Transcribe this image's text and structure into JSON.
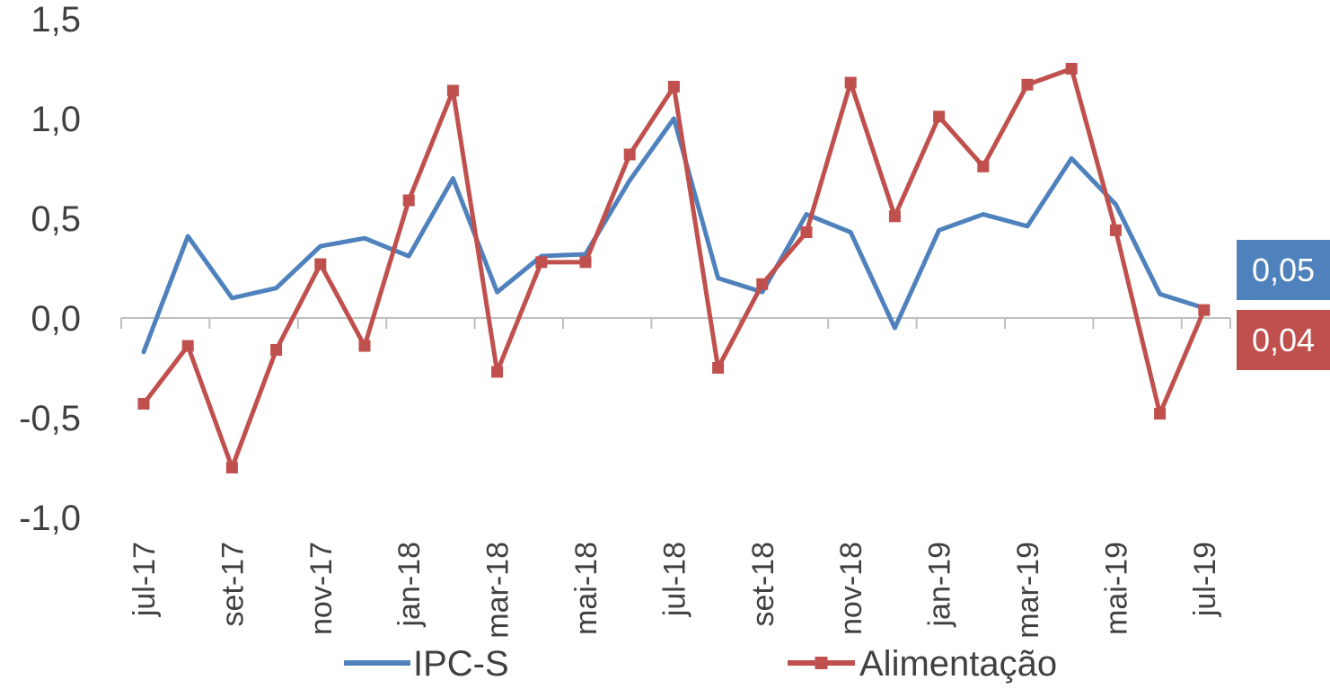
{
  "chart_data": {
    "type": "line",
    "title": "",
    "xlabel": "",
    "ylabel": "",
    "ylim": [
      -1.0,
      1.5
    ],
    "yticks": [
      "-1,0",
      "-0,5",
      "0,0",
      "0,5",
      "1,0",
      "1,5"
    ],
    "grid": false,
    "legend_position": "bottom",
    "x": [
      "jul-17",
      "ago-17",
      "set-17",
      "out-17",
      "nov-17",
      "dez-17",
      "jan-18",
      "fev-18",
      "mar-18",
      "abr-18",
      "mai-18",
      "jun-18",
      "jul-18",
      "ago-18",
      "set-18",
      "out-18",
      "nov-18",
      "dez-18",
      "jan-19",
      "fev-19",
      "mar-19",
      "abr-19",
      "mai-19",
      "jun-19",
      "jul-19"
    ],
    "x_tick_labels": [
      "jul-17",
      "",
      "set-17",
      "",
      "nov-17",
      "",
      "jan-18",
      "",
      "mar-18",
      "",
      "mai-18",
      "",
      "jul-18",
      "",
      "set-18",
      "",
      "nov-18",
      "",
      "jan-19",
      "",
      "mar-19",
      "",
      "mai-19",
      "",
      "jul-19"
    ],
    "series": [
      {
        "name": "IPC-S",
        "color": "#4F81BD",
        "marker": "none",
        "values": [
          -0.17,
          0.41,
          0.1,
          0.15,
          0.36,
          0.4,
          0.31,
          0.7,
          0.13,
          0.31,
          0.32,
          0.69,
          1.0,
          0.2,
          0.13,
          0.52,
          0.43,
          -0.05,
          0.44,
          0.52,
          0.46,
          0.8,
          0.57,
          0.12,
          0.05
        ],
        "end_label": "0,05"
      },
      {
        "name": "Alimentação",
        "color": "#C0504D",
        "marker": "square",
        "values": [
          -0.43,
          -0.14,
          -0.75,
          -0.16,
          0.27,
          -0.14,
          0.59,
          1.14,
          -0.27,
          0.28,
          0.28,
          0.82,
          1.16,
          -0.25,
          0.17,
          0.43,
          1.18,
          0.51,
          1.01,
          0.76,
          1.17,
          1.25,
          0.44,
          -0.48,
          0.04
        ],
        "end_label": "0,04"
      }
    ]
  }
}
